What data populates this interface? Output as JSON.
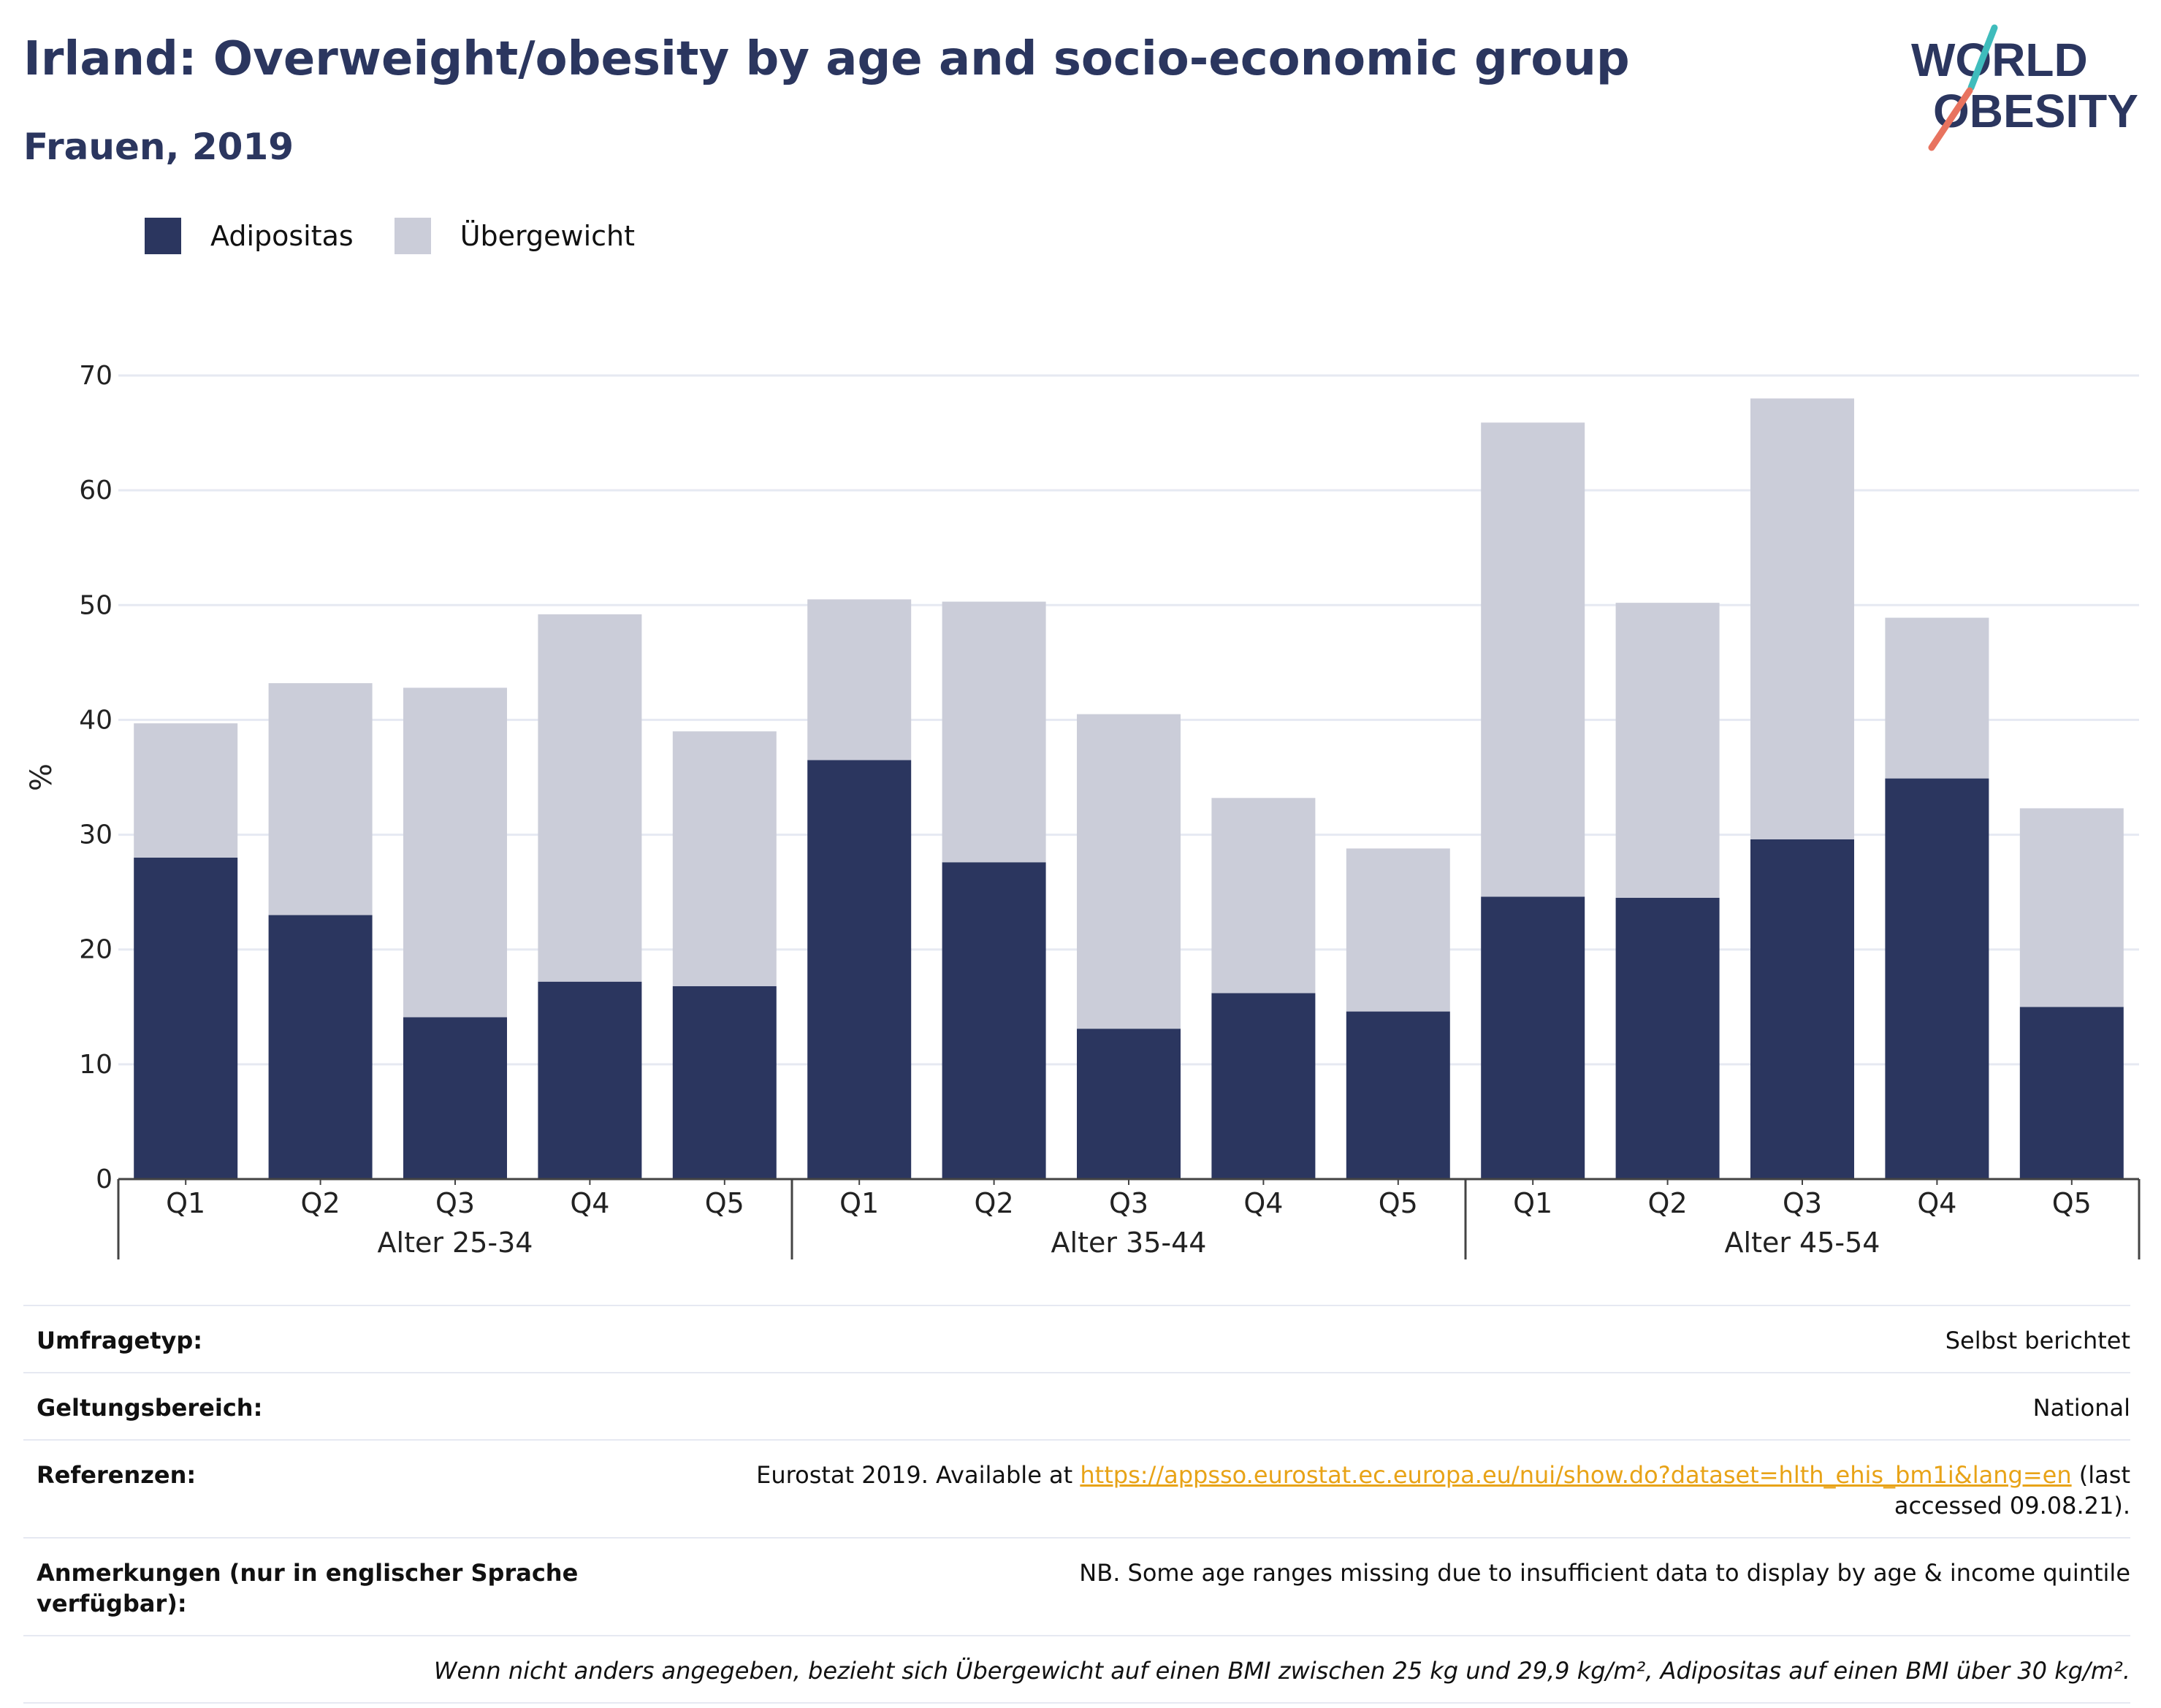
{
  "header": {
    "title": "Irland: Overweight/obesity by age and socio-economic group",
    "subtitle": "Frauen, 2019",
    "logo_line1": "WORLD",
    "logo_line2": "OBESITY"
  },
  "colors": {
    "obesity": "#2b365f",
    "overweight": "#cbcdd9",
    "grid": "#e6e9f2",
    "link": "#e8a317"
  },
  "legend": [
    {
      "label": "Adipositas",
      "color": "#2b365f"
    },
    {
      "label": "Übergewicht",
      "color": "#cbcdd9"
    }
  ],
  "chart_data": {
    "type": "bar",
    "stacked": true,
    "ylabel": "%",
    "ylim": [
      0,
      70
    ],
    "yticks": [
      0,
      10,
      20,
      30,
      40,
      50,
      60,
      70
    ],
    "grid": true,
    "legend_position": "top-left",
    "groups": [
      {
        "label": "Alter 25-34",
        "categories": [
          "Q1",
          "Q2",
          "Q3",
          "Q4",
          "Q5"
        ]
      },
      {
        "label": "Alter 35-44",
        "categories": [
          "Q1",
          "Q2",
          "Q3",
          "Q4",
          "Q5"
        ]
      },
      {
        "label": "Alter 45-54",
        "categories": [
          "Q1",
          "Q2",
          "Q3",
          "Q4",
          "Q5"
        ]
      }
    ],
    "series": [
      {
        "name": "Adipositas",
        "values": [
          28.0,
          23.0,
          14.1,
          17.2,
          16.8,
          36.5,
          27.6,
          13.1,
          16.2,
          14.6,
          24.6,
          24.5,
          29.6,
          34.9,
          15.0
        ]
      },
      {
        "name": "Übergewicht",
        "values": [
          11.7,
          20.2,
          28.7,
          32.0,
          22.2,
          14.0,
          22.7,
          27.4,
          17.0,
          14.2,
          41.3,
          25.7,
          38.4,
          14.0,
          17.3
        ]
      }
    ]
  },
  "info": {
    "rows": [
      {
        "label": "Umfragetyp:",
        "value": "Selbst berichtet"
      },
      {
        "label": "Geltungsbereich:",
        "value": "National"
      },
      {
        "label": "Referenzen:",
        "value_prefix": "Eurostat 2019. Available at ",
        "link": "https://appsso.eurostat.ec.europa.eu/nui/show.do?dataset=hlth_ehis_bm1i&lang=en",
        "value_suffix": " (last accessed 09.08.21)."
      },
      {
        "label": "Anmerkungen (nur in englischer Sprache verfügbar):",
        "value": "NB. Some age ranges missing due to insufficient data to display by age & income quintile"
      }
    ],
    "note": "Wenn nicht anders angegeben, bezieht sich Übergewicht auf einen BMI zwischen 25 kg und 29,9 kg/m², Adipositas auf einen BMI über 30 kg/m²."
  }
}
